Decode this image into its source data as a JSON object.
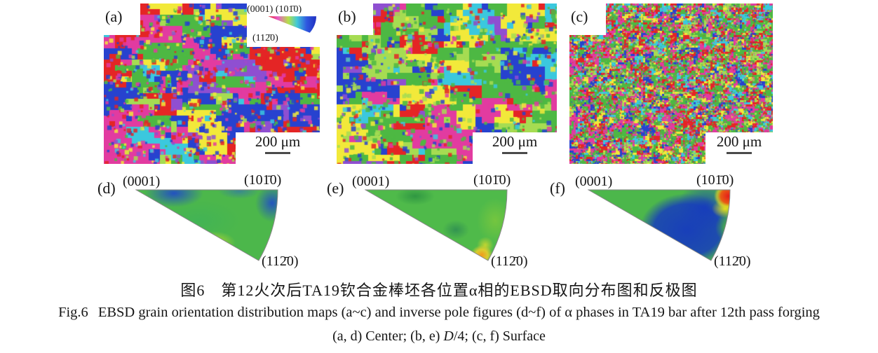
{
  "figure": {
    "panels": {
      "a": "(a)",
      "b": "(b)",
      "c": "(c)",
      "d": "(d)",
      "e": "(e)",
      "f": "(f)"
    },
    "scale_bar": "200 μm",
    "ipf_key": {
      "top_label": "(0001) (101̄0)",
      "bottom_label": "(112̄0)"
    },
    "pole_labels": {
      "basal": "(0001)",
      "prism1": "(101̄0)",
      "prism2": "(112̄0)"
    },
    "captions": {
      "zh": "图6　第12火次后TA19钦合金棒坯各位置α相的EBSD取向分布图和反极图",
      "en_label": "Fig.6",
      "en_text": "EBSD grain orientation distribution maps (a~c) and inverse pole figures (d~f) of α phases in TA19 bar after 12th pass forging",
      "sub_parts": {
        "p1": "(a, d) Center; (b, e) ",
        "p2": "D",
        "p3": "/4; (c, f) Surface"
      }
    },
    "ipf_palette": {
      "red": "#e42525",
      "blue": "#2742cf",
      "green": "#4db843",
      "yellow": "#f2e93a",
      "magenta": "#e23ba0",
      "purple": "#8f4fd1",
      "cyan": "#3bc8de",
      "lgreen": "#a6dc52"
    }
  }
}
